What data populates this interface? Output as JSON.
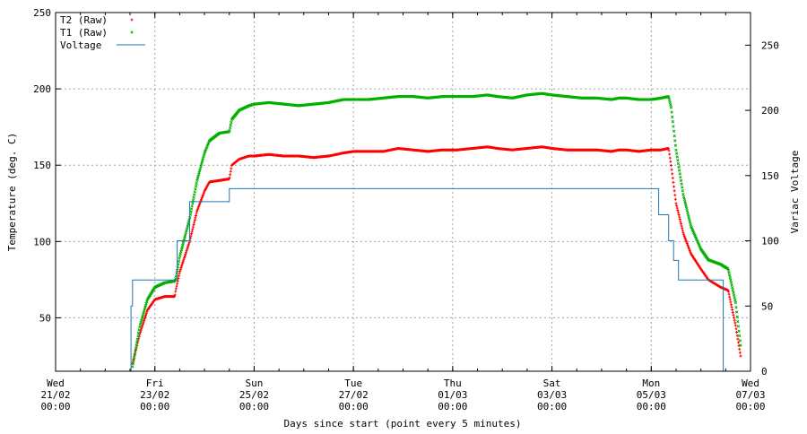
{
  "chart_data": {
    "type": "line",
    "title": "",
    "xlabel": "Days since start (point every 5 minutes)",
    "ylabel": "Temperature (deg. C)",
    "y2label": "Variac Voltage",
    "xlim": [
      0,
      14
    ],
    "ylim": [
      15,
      250
    ],
    "y2lim": [
      0,
      275
    ],
    "x_tick_labels": [
      {
        "x": 0,
        "day": "Wed",
        "date": "21/02",
        "time": "00:00"
      },
      {
        "x": 2,
        "day": "Fri",
        "date": "23/02",
        "time": "00:00"
      },
      {
        "x": 4,
        "day": "Sun",
        "date": "25/02",
        "time": "00:00"
      },
      {
        "x": 6,
        "day": "Tue",
        "date": "27/02",
        "time": "00:00"
      },
      {
        "x": 8,
        "day": "Thu",
        "date": "01/03",
        "time": "00:00"
      },
      {
        "x": 10,
        "day": "Sat",
        "date": "03/03",
        "time": "00:00"
      },
      {
        "x": 12,
        "day": "Mon",
        "date": "05/03",
        "time": "00:00"
      },
      {
        "x": 14,
        "day": "Wed",
        "date": "07/03",
        "time": "00:00"
      }
    ],
    "y_ticks": [
      50,
      100,
      150,
      200,
      250
    ],
    "y2_ticks": [
      0,
      50,
      100,
      150,
      200,
      250
    ],
    "grid": true,
    "legend_position": "top-left",
    "series": [
      {
        "name": "T2 (Raw)",
        "axis": "y",
        "marker": "+",
        "color": "#ff0000",
        "x": [
          1.55,
          1.7,
          1.85,
          2.0,
          2.2,
          2.4,
          2.42,
          2.5,
          2.7,
          2.85,
          3.0,
          3.1,
          3.3,
          3.5,
          3.55,
          3.7,
          3.9,
          4.0,
          4.3,
          4.6,
          4.9,
          5.2,
          5.5,
          5.8,
          6.0,
          6.3,
          6.6,
          6.9,
          7.2,
          7.5,
          7.8,
          8.1,
          8.4,
          8.7,
          8.9,
          9.2,
          9.5,
          9.8,
          10.0,
          10.3,
          10.6,
          10.9,
          11.2,
          11.35,
          11.5,
          11.75,
          12.0,
          12.2,
          12.35,
          12.4,
          12.5,
          12.65,
          12.8,
          13.0,
          13.15,
          13.4,
          13.55,
          13.7,
          13.8
        ],
        "y": [
          20,
          40,
          55,
          62,
          64,
          64,
          68,
          80,
          100,
          120,
          133,
          139,
          140,
          141,
          150,
          154,
          156,
          156,
          157,
          156,
          156,
          155,
          156,
          158,
          159,
          159,
          159,
          161,
          160,
          159,
          160,
          160,
          161,
          162,
          161,
          160,
          161,
          162,
          161,
          160,
          160,
          160,
          159,
          160,
          160,
          159,
          160,
          160,
          161,
          150,
          125,
          105,
          92,
          82,
          75,
          70,
          68,
          45,
          25
        ]
      },
      {
        "name": "T1 (Raw)",
        "axis": "y",
        "marker": "x",
        "color": "#00b000",
        "x": [
          1.55,
          1.7,
          1.85,
          2.0,
          2.2,
          2.4,
          2.42,
          2.5,
          2.7,
          2.85,
          3.0,
          3.1,
          3.3,
          3.5,
          3.55,
          3.7,
          3.9,
          4.0,
          4.3,
          4.6,
          4.9,
          5.2,
          5.5,
          5.8,
          6.0,
          6.3,
          6.6,
          6.9,
          7.2,
          7.5,
          7.8,
          8.1,
          8.4,
          8.7,
          8.9,
          9.2,
          9.5,
          9.8,
          10.0,
          10.3,
          10.6,
          10.9,
          11.2,
          11.35,
          11.5,
          11.75,
          12.0,
          12.2,
          12.35,
          12.4,
          12.5,
          12.65,
          12.8,
          13.0,
          13.15,
          13.4,
          13.55,
          13.7,
          13.8
        ],
        "y": [
          18,
          45,
          62,
          70,
          73,
          74,
          76,
          90,
          115,
          140,
          158,
          166,
          171,
          172,
          180,
          186,
          189,
          190,
          191,
          190,
          189,
          190,
          191,
          193,
          193,
          193,
          194,
          195,
          195,
          194,
          195,
          195,
          195,
          196,
          195,
          194,
          196,
          197,
          196,
          195,
          194,
          194,
          193,
          194,
          194,
          193,
          193,
          194,
          195,
          188,
          160,
          130,
          110,
          95,
          88,
          85,
          82,
          60,
          32
        ]
      },
      {
        "name": "Voltage",
        "axis": "y2",
        "color": "#1f77b4",
        "x": [
          1.52,
          1.52,
          1.55,
          1.55,
          2.45,
          2.45,
          2.7,
          2.7,
          3.5,
          3.5,
          12.15,
          12.15,
          12.35,
          12.35,
          12.45,
          12.45,
          12.55,
          12.55,
          12.75,
          12.75,
          13.45,
          13.45,
          13.55
        ],
        "y": [
          0,
          50,
          50,
          70,
          70,
          100,
          100,
          130,
          130,
          140,
          140,
          120,
          120,
          100,
          100,
          85,
          85,
          70,
          70,
          70,
          70,
          0,
          0
        ]
      }
    ],
    "annotations": []
  }
}
